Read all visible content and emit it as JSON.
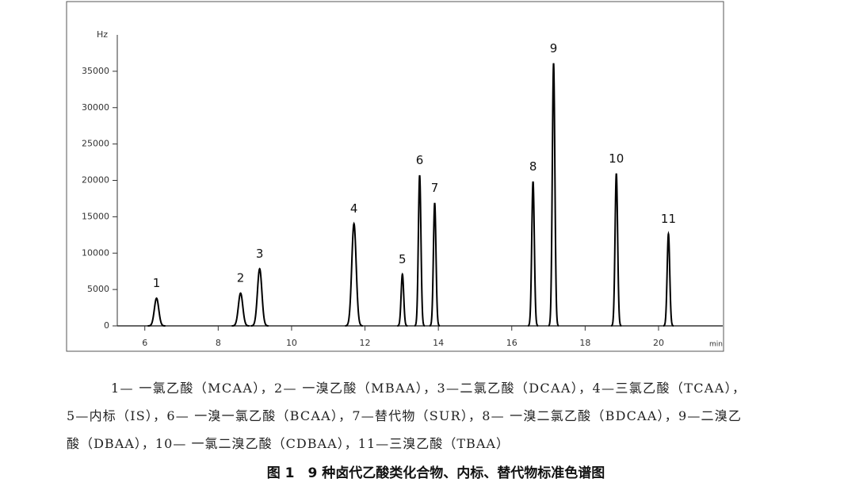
{
  "chart_data": {
    "type": "chromatogram",
    "y_label": "Hz",
    "x_label": "min",
    "x": [
      6.32,
      8.61,
      9.13,
      11.7,
      13.02,
      13.49,
      13.9,
      16.58,
      17.14,
      18.85,
      20.27
    ],
    "values": [
      3800,
      4500,
      7850,
      14050,
      7100,
      20700,
      16900,
      19850,
      36100,
      20950,
      12650
    ],
    "labels": [
      "1",
      "2",
      "3",
      "4",
      "5",
      "6",
      "7",
      "8",
      "9",
      "10",
      "11"
    ],
    "color": "#000000",
    "xlim": [
      5.25,
      21.75
    ],
    "xticks": [
      6,
      8,
      10,
      12,
      14,
      16,
      18,
      20
    ],
    "ylim": [
      0,
      40000
    ],
    "yticks": [
      0,
      5000,
      10000,
      15000,
      20000,
      25000,
      30000,
      35000
    ]
  },
  "caption": {
    "lines": [
      "1— 一氯乙酸（MCAA），2— 一溴乙酸（MBAA），3—二氯乙酸（DCAA），4—三氯乙酸（TCAA），",
      "5—内标（IS），6— 一溴一氯乙酸（BCAA），7—替代物（SUR），8— 一溴二氯乙酸（BDCAA），9—二溴乙",
      "酸（DBAA），10— 一氯二溴乙酸（CDBAA），11—三溴乙酸（TBAA）"
    ],
    "title": "图 1　9 种卤代乙酸类化合物、内标、替代物标准色谱图"
  }
}
